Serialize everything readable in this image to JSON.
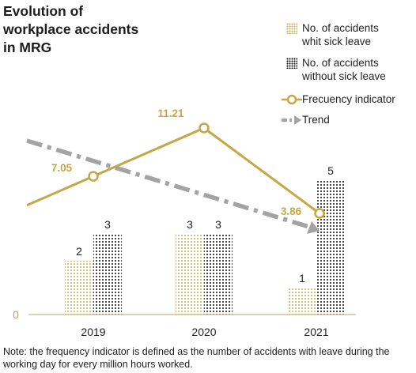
{
  "title": "Evolution of workplace accidents in MRG",
  "note": "Note: the frequency indicator is defined as the number of accidents with leave during the working day for every million hours worked.",
  "colors": {
    "gold": "#c4a847",
    "gold_dots": "#c9ad5c",
    "black_dots": "#111111",
    "trend": "#a3a3a3",
    "axis": "#b9a56a"
  },
  "legend": [
    {
      "key": "sick",
      "icon": "gold-dot-swatch",
      "label_lines": [
        "No. of accidents",
        "whit sick leave"
      ]
    },
    {
      "key": "nosick",
      "icon": "black-dot-swatch",
      "label_lines": [
        "No. of accidents",
        "without sick leave"
      ]
    },
    {
      "key": "freq",
      "icon": "gold-circle-line-marker",
      "label_lines": [
        "Frecuency indicator"
      ]
    },
    {
      "key": "trend",
      "icon": "gray-dashdot-arrow",
      "label_lines": [
        "Trend"
      ]
    }
  ],
  "chart_data": {
    "type": "bar",
    "categories": [
      "2019",
      "2020",
      "2021"
    ],
    "series": [
      {
        "name": "No. of accidents whit sick leave",
        "values": [
          2,
          3,
          1
        ]
      },
      {
        "name": "No. of accidents without sick leave",
        "values": [
          3,
          3,
          5
        ]
      }
    ],
    "line_series": {
      "name": "Frecuency indicator",
      "values": [
        7.05,
        11.21,
        3.86
      ],
      "labels": [
        "7.05",
        "11.21",
        "3.86"
      ]
    },
    "trend": {
      "name": "Trend"
    },
    "y_axis_label": "0",
    "ylim": [
      0,
      5
    ],
    "grid": false,
    "legend_position": "top-right"
  }
}
